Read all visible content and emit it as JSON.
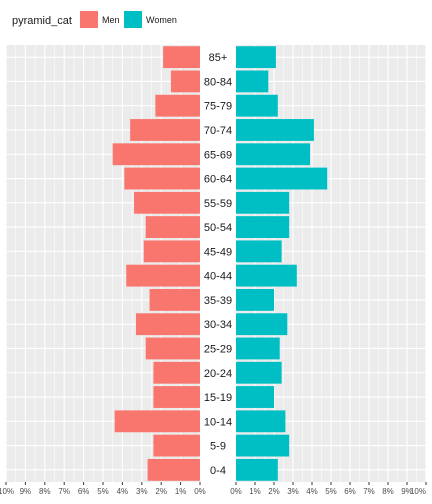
{
  "chart_data": {
    "type": "bar",
    "subtype": "population-pyramid",
    "orientation": "horizontal",
    "legend": {
      "title": "pyramid_cat",
      "position": "top-left",
      "entries": [
        {
          "name": "Men",
          "color": "#F8766D"
        },
        {
          "name": "Women",
          "color": "#00BFC4"
        }
      ]
    },
    "categories": [
      "0-4",
      "5-9",
      "10-14",
      "15-19",
      "20-24",
      "25-29",
      "30-34",
      "35-39",
      "40-44",
      "45-49",
      "50-54",
      "55-59",
      "60-64",
      "65-69",
      "70-74",
      "75-79",
      "80-84",
      "85+"
    ],
    "series": [
      {
        "name": "Men",
        "color": "#F8766D",
        "side": "left",
        "values": [
          2.7,
          2.4,
          4.4,
          2.4,
          2.4,
          2.8,
          3.3,
          2.6,
          3.8,
          2.9,
          2.8,
          3.4,
          3.9,
          4.5,
          3.6,
          2.3,
          1.5,
          1.9
        ]
      },
      {
        "name": "Women",
        "color": "#00BFC4",
        "side": "right",
        "values": [
          2.2,
          2.8,
          2.6,
          2.0,
          2.4,
          2.3,
          2.7,
          2.0,
          3.2,
          2.4,
          2.8,
          2.8,
          4.8,
          3.9,
          4.1,
          2.2,
          1.7,
          2.1
        ]
      }
    ],
    "axis": {
      "unit": "%",
      "range": [
        0,
        10
      ],
      "left_ticks": [
        "10%",
        "9%",
        "8%",
        "7%",
        "6%",
        "5%",
        "4%",
        "3%",
        "2%",
        "1%",
        "0%"
      ],
      "right_ticks": [
        "0%",
        "1%",
        "2%",
        "3%",
        "4%",
        "5%",
        "6%",
        "7%",
        "8%",
        "9%",
        "10%"
      ]
    },
    "grid": true,
    "panel_background": "#EBEBEB"
  }
}
